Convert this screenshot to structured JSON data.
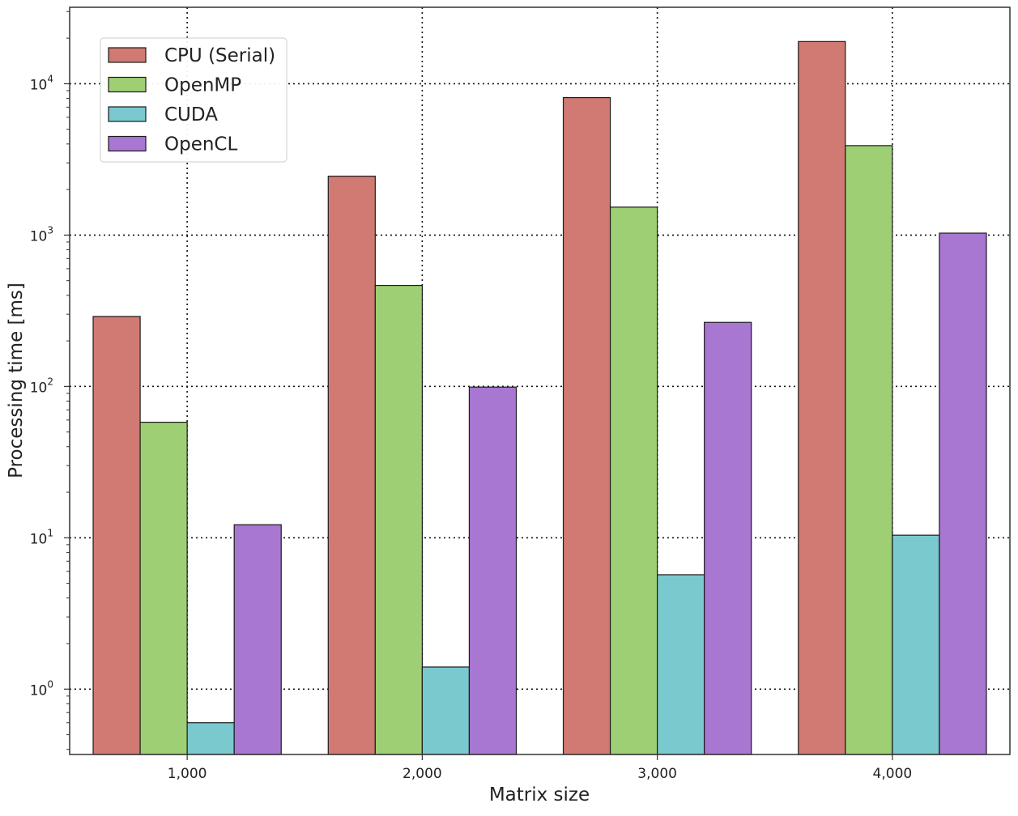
{
  "chart_data": {
    "type": "bar",
    "title": "",
    "xlabel": "Matrix size",
    "ylabel": "Processing time [ms]",
    "yscale": "log",
    "ylim": [
      0.37,
      32000
    ],
    "grid": true,
    "legend_position": "top-left",
    "categories": [
      "1,000",
      "2,000",
      "3,000",
      "4,000"
    ],
    "series": [
      {
        "name": "CPU (Serial)",
        "color": "#d07a73",
        "values": [
          290,
          2450,
          8100,
          19000
        ]
      },
      {
        "name": "OpenMP",
        "color": "#9ecf74",
        "values": [
          58,
          465,
          1530,
          3900
        ]
      },
      {
        "name": "CUDA",
        "color": "#79c9cf",
        "values": [
          0.6,
          1.4,
          5.7,
          10.4
        ]
      },
      {
        "name": "OpenCL",
        "color": "#a877d2",
        "values": [
          12.2,
          99,
          265,
          1030
        ]
      }
    ],
    "ytick_labels": [
      {
        "value": 1,
        "base": "10",
        "exp": "0"
      },
      {
        "value": 10,
        "base": "10",
        "exp": "1"
      },
      {
        "value": 100,
        "base": "10",
        "exp": "2"
      },
      {
        "value": 1000,
        "base": "10",
        "exp": "3"
      },
      {
        "value": 10000,
        "base": "10",
        "exp": "4"
      }
    ]
  }
}
